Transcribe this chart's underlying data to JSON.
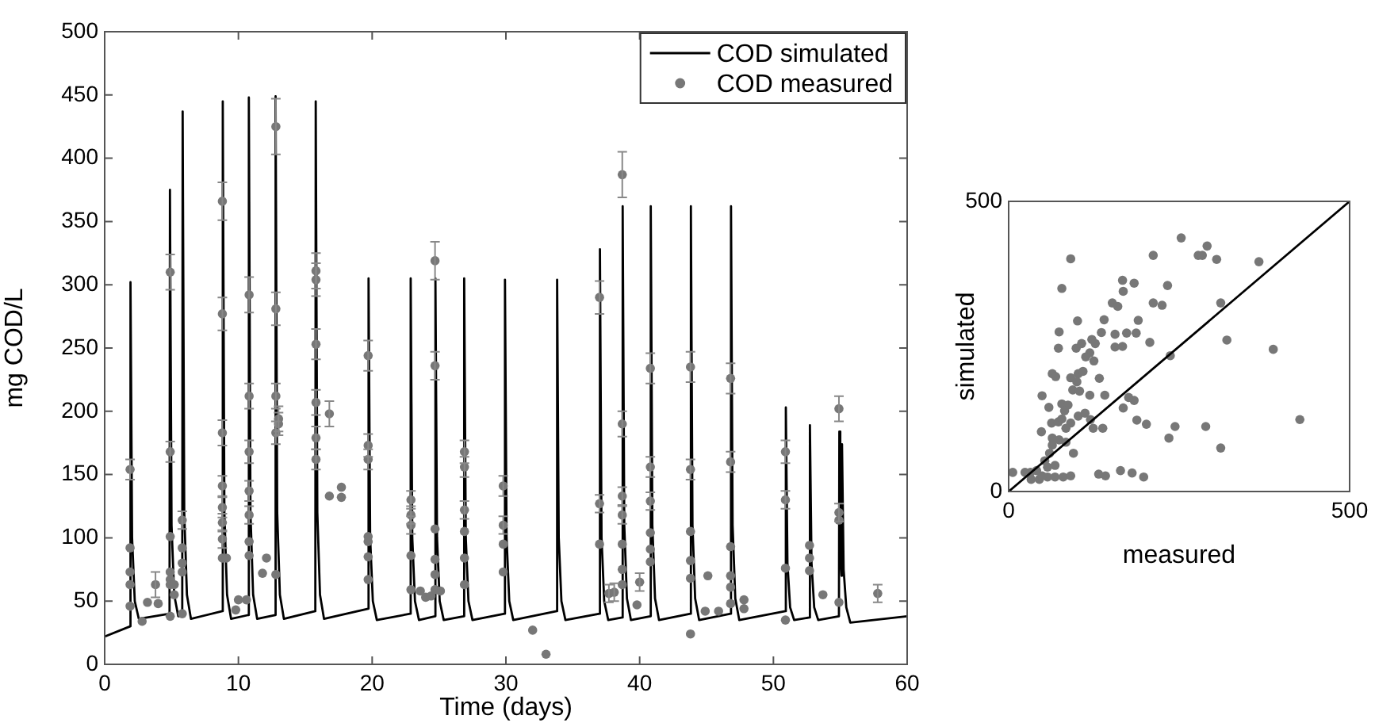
{
  "chart_data": [
    {
      "type": "line",
      "xlabel": "Time (days)",
      "ylabel": "mg COD/L",
      "xlim": [
        0,
        60
      ],
      "ylim": [
        0,
        500
      ],
      "xticks": [
        0,
        10,
        20,
        30,
        40,
        50,
        60
      ],
      "yticks": [
        0,
        50,
        100,
        150,
        200,
        250,
        300,
        350,
        400,
        450,
        500
      ],
      "grid": false,
      "legend": "top right",
      "series": [
        {
          "name": "COD simulated",
          "color": "#000000",
          "marker": "none",
          "x": [
            0,
            1.9,
            1.93,
            2.05,
            2.25,
            2.55,
            4.85,
            4.88,
            5.0,
            5.2,
            5.5,
            5.8,
            5.83,
            5.95,
            6.15,
            6.45,
            8.8,
            8.83,
            8.95,
            9.15,
            9.45,
            10.75,
            10.78,
            10.9,
            11.1,
            11.4,
            12.75,
            12.78,
            12.9,
            13.1,
            13.4,
            15.75,
            15.78,
            15.9,
            16.1,
            16.4,
            19.7,
            19.73,
            19.85,
            20.05,
            20.35,
            22.85,
            22.88,
            23.0,
            23.2,
            23.5,
            24.7,
            24.73,
            24.85,
            25.05,
            25.35,
            26.85,
            26.88,
            27.0,
            27.2,
            27.5,
            29.9,
            29.93,
            30.05,
            30.25,
            30.55,
            33.8,
            33.83,
            33.95,
            34.15,
            34.45,
            37.0,
            37.03,
            37.15,
            37.35,
            37.65,
            38.7,
            38.73,
            38.85,
            39.05,
            39.35,
            40.8,
            40.83,
            40.95,
            41.15,
            41.45,
            43.8,
            43.83,
            43.95,
            44.15,
            44.45,
            46.8,
            46.83,
            46.95,
            47.15,
            47.45,
            50.9,
            50.93,
            51.05,
            51.25,
            51.55,
            52.7,
            52.73,
            52.85,
            53.05,
            53.35,
            54.9,
            54.93,
            55.0,
            55.1,
            55.13,
            55.25,
            55.45,
            55.75,
            60
          ],
          "values": [
            22,
            30,
            302,
            100,
            50,
            36,
            40,
            375,
            110,
            55,
            38,
            38,
            437,
            120,
            55,
            36,
            42,
            445,
            120,
            55,
            36,
            39,
            448,
            120,
            55,
            36,
            39,
            449,
            120,
            55,
            36,
            42,
            445,
            120,
            55,
            36,
            44,
            305,
            100,
            50,
            35,
            40,
            305,
            100,
            50,
            35,
            38,
            305,
            100,
            50,
            35,
            38,
            305,
            100,
            50,
            35,
            40,
            304,
            100,
            50,
            35,
            42,
            304,
            100,
            50,
            35,
            40,
            328,
            100,
            50,
            35,
            37,
            362,
            110,
            52,
            35,
            38,
            362,
            110,
            52,
            35,
            40,
            362,
            110,
            52,
            35,
            40,
            362,
            110,
            52,
            35,
            42,
            203,
            80,
            45,
            35,
            37,
            189,
            80,
            45,
            35,
            38,
            184,
            90,
            70,
            174,
            75,
            45,
            33,
            38
          ]
        },
        {
          "name": "COD measured",
          "type": "scatter",
          "color": "#777777",
          "marker": "circle",
          "x": [
            1.9,
            1.9,
            1.9,
            1.9,
            1.9,
            2.8,
            3.2,
            3.8,
            4.0,
            4.9,
            4.9,
            4.9,
            4.9,
            4.9,
            4.9,
            4.9,
            5.2,
            5.2,
            5.8,
            5.8,
            5.8,
            5.8,
            5.8,
            8.8,
            8.8,
            8.8,
            8.8,
            8.8,
            8.8,
            8.8,
            8.8,
            9.1,
            9.8,
            10.0,
            10.8,
            10.8,
            10.8,
            10.8,
            10.8,
            10.8,
            10.8,
            10.6,
            11.8,
            12.1,
            12.8,
            12.8,
            12.8,
            12.8,
            12.8,
            13.0,
            13.0,
            15.8,
            15.8,
            15.8,
            15.8,
            15.8,
            15.8,
            16.8,
            16.8,
            17.7,
            17.7,
            19.7,
            19.7,
            19.7,
            19.7,
            19.7,
            19.7,
            19.7,
            22.9,
            22.9,
            22.9,
            22.9,
            22.9,
            23.6,
            24.0,
            24.4,
            24.7,
            24.7,
            24.7,
            24.7,
            24.7,
            24.7,
            25.1,
            26.9,
            26.9,
            26.9,
            26.9,
            26.9,
            26.9,
            29.8,
            29.8,
            29.8,
            29.8,
            32.0,
            33.0,
            37.0,
            37.0,
            37.0,
            37.7,
            38.1,
            38.7,
            38.7,
            38.7,
            38.7,
            38.7,
            38.7,
            38.7,
            40.0,
            39.8,
            40.8,
            40.8,
            40.8,
            40.8,
            40.8,
            40.8,
            43.8,
            43.8,
            43.8,
            43.8,
            43.8,
            43.8,
            45.1,
            44.9,
            45.9,
            46.8,
            46.8,
            46.8,
            46.8,
            46.8,
            46.8,
            47.8,
            47.8,
            50.9,
            50.9,
            50.9,
            50.9,
            52.7,
            52.7,
            52.7,
            53.7,
            54.9,
            54.9,
            54.9,
            54.9,
            57.8
          ],
          "values": [
            154,
            92,
            73,
            63,
            46,
            34,
            49,
            63,
            48,
            310,
            168,
            101,
            73,
            67,
            63,
            38,
            63,
            55,
            114,
            92,
            80,
            73,
            40,
            366,
            277,
            183,
            141,
            124,
            112,
            99,
            84,
            84,
            43,
            51,
            292,
            212,
            168,
            137,
            118,
            97,
            86,
            51,
            72,
            84,
            425,
            281,
            212,
            183,
            71,
            194,
            190,
            311,
            304,
            253,
            207,
            179,
            162,
            198,
            133,
            140,
            132,
            244,
            173,
            162,
            101,
            97,
            85,
            67,
            130,
            118,
            110,
            86,
            59,
            58,
            53,
            54,
            319,
            236,
            107,
            83,
            71,
            59,
            58,
            168,
            156,
            122,
            105,
            84,
            63,
            141,
            110,
            95,
            73,
            27,
            8,
            290,
            127,
            95,
            56,
            57,
            387,
            190,
            133,
            118,
            95,
            75,
            63,
            65,
            47,
            234,
            156,
            129,
            104,
            91,
            81,
            235,
            154,
            105,
            82,
            68,
            24,
            70,
            42,
            42,
            226,
            160,
            93,
            70,
            61,
            48,
            44,
            51,
            168,
            130,
            76,
            35,
            84,
            94,
            74,
            55,
            202,
            120,
            114,
            49,
            56
          ],
          "errors": [
            8,
            null,
            null,
            null,
            null,
            null,
            null,
            10,
            null,
            14,
            8,
            null,
            null,
            null,
            null,
            null,
            null,
            null,
            7,
            null,
            null,
            null,
            null,
            15,
            13,
            10,
            8,
            8,
            7,
            7,
            null,
            null,
            null,
            null,
            14,
            10,
            9,
            8,
            7,
            null,
            null,
            null,
            null,
            null,
            22,
            13,
            10,
            9,
            null,
            10,
            9,
            14,
            13,
            12,
            10,
            9,
            8,
            10,
            null,
            null,
            null,
            12,
            9,
            8,
            null,
            null,
            null,
            null,
            7,
            7,
            7,
            null,
            null,
            null,
            null,
            null,
            15,
            11,
            null,
            null,
            null,
            null,
            null,
            9,
            8,
            7,
            null,
            null,
            null,
            8,
            7,
            null,
            null,
            null,
            null,
            13,
            7,
            null,
            7,
            7,
            18,
            10,
            7,
            7,
            null,
            null,
            null,
            7,
            null,
            12,
            8,
            7,
            null,
            null,
            null,
            12,
            8,
            null,
            null,
            null,
            null,
            null,
            null,
            null,
            12,
            8,
            null,
            null,
            null,
            null,
            null,
            null,
            9,
            7,
            null,
            null,
            null,
            null,
            null,
            null,
            10,
            7,
            null,
            null,
            7
          ]
        }
      ]
    },
    {
      "type": "scatter",
      "xlabel": "measured",
      "ylabel": "simulated",
      "xlim": [
        0,
        500
      ],
      "ylim": [
        0,
        500
      ],
      "xticks": [
        0,
        500
      ],
      "yticks": [
        0,
        500
      ],
      "grid": false,
      "series": [
        {
          "color": "#777777",
          "marker": "circle",
          "x": [
            253,
            291,
            278,
            284,
            305,
            367,
            212,
            91,
            78,
            167,
            184,
            168,
            233,
            152,
            160,
            212,
            225,
            311,
            190,
            140,
            101,
            74,
            136,
            156,
            173,
            187,
            73,
            99,
            122,
            107,
            127,
            156,
            167,
            207,
            320,
            388,
            237,
            119,
            113,
            125,
            64,
            69,
            91,
            102,
            109,
            100,
            133,
            94,
            104,
            49,
            59,
            78,
            87,
            82,
            119,
            141,
            184,
            176,
            168,
            63,
            73,
            78,
            91,
            84,
            102,
            120,
            124,
            138,
            112,
            188,
            202,
            244,
            289,
            235,
            311,
            427,
            48,
            64,
            74,
            84,
            95,
            64,
            60,
            53,
            57,
            68,
            41,
            32,
            33,
            45,
            57,
            68,
            80,
            91,
            6,
            24,
            132,
            142,
            164,
            181,
            198,
            49
          ],
          "values": [
            437,
            423,
            407,
            407,
            400,
            396,
            407,
            401,
            350,
            364,
            359,
            345,
            355,
            325,
            319,
            325,
            321,
            325,
            295,
            296,
            294,
            275,
            274,
            271,
            273,
            273,
            247,
            247,
            262,
            255,
            255,
            249,
            250,
            257,
            261,
            245,
            234,
            239,
            232,
            225,
            203,
            198,
            196,
            203,
            207,
            189,
            195,
            175,
            173,
            165,
            145,
            151,
            149,
            139,
            166,
            166,
            157,
            162,
            144,
            118,
            120,
            125,
            118,
            109,
            130,
            124,
            109,
            109,
            135,
            123,
            116,
            112,
            112,
            92,
            75,
            124,
            103,
            92,
            89,
            85,
            66,
            80,
            66,
            53,
            42,
            45,
            36,
            33,
            21,
            21,
            25,
            25,
            25,
            27,
            33,
            33,
            30,
            27,
            36,
            32,
            25,
            27
          ]
        },
        {
          "type": "line",
          "color": "#000000",
          "marker": "none",
          "x": [
            0,
            500
          ],
          "values": [
            0,
            500
          ]
        }
      ]
    }
  ]
}
